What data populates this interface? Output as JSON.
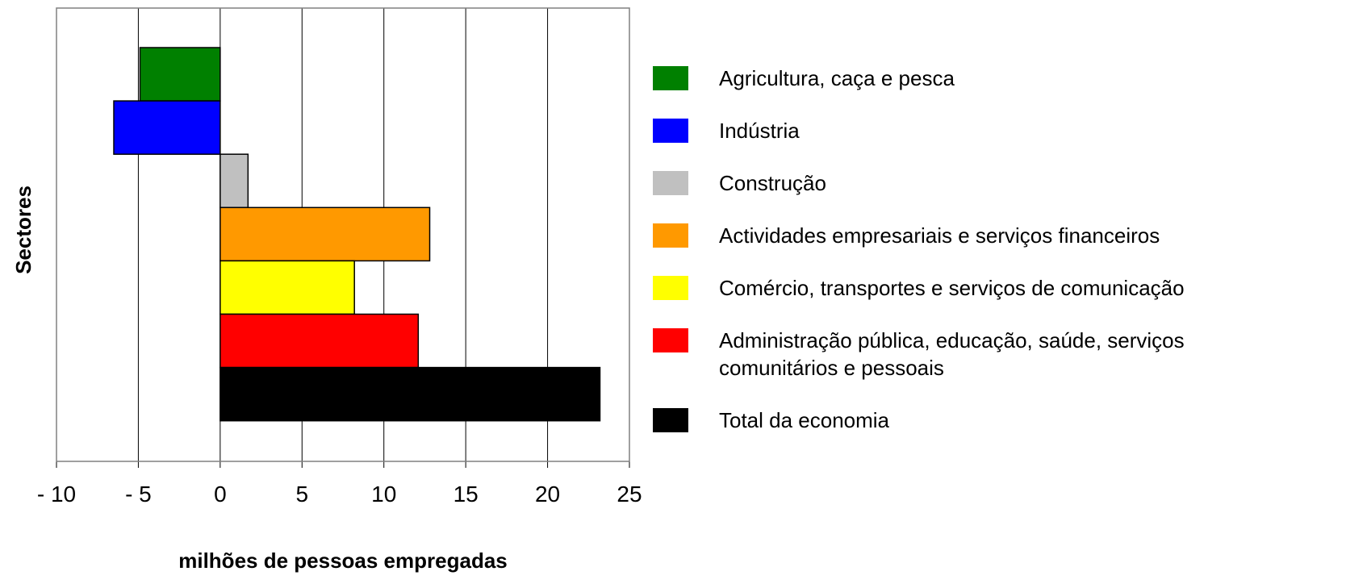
{
  "chart_data": {
    "type": "bar",
    "orientation": "horizontal",
    "x_label": "milhões de pessoas empregadas",
    "y_label": "Sectores",
    "categories": [
      "Agricultura, caça e pesca",
      "Indústria",
      "Construção",
      "Actividades empresariais e serviços financeiros",
      "Comércio, transportes e serviços de comunicação",
      "Administração pública, educação, saúde, serviços comunitários e pessoais",
      "Total da economia"
    ],
    "values": [
      -4.9,
      -6.5,
      1.7,
      12.8,
      8.2,
      12.1,
      23.2
    ],
    "colors": [
      "#008000",
      "#0000ff",
      "#c0c0c0",
      "#ff9900",
      "#ffff00",
      "#ff0000",
      "#000000"
    ],
    "xlim": [
      -10,
      25
    ],
    "xticks": [
      {
        "value": -10,
        "label": "- 10"
      },
      {
        "value": -5,
        "label": "- 5"
      },
      0,
      5,
      10,
      15,
      20,
      25
    ],
    "grid": true,
    "legend": "right"
  }
}
